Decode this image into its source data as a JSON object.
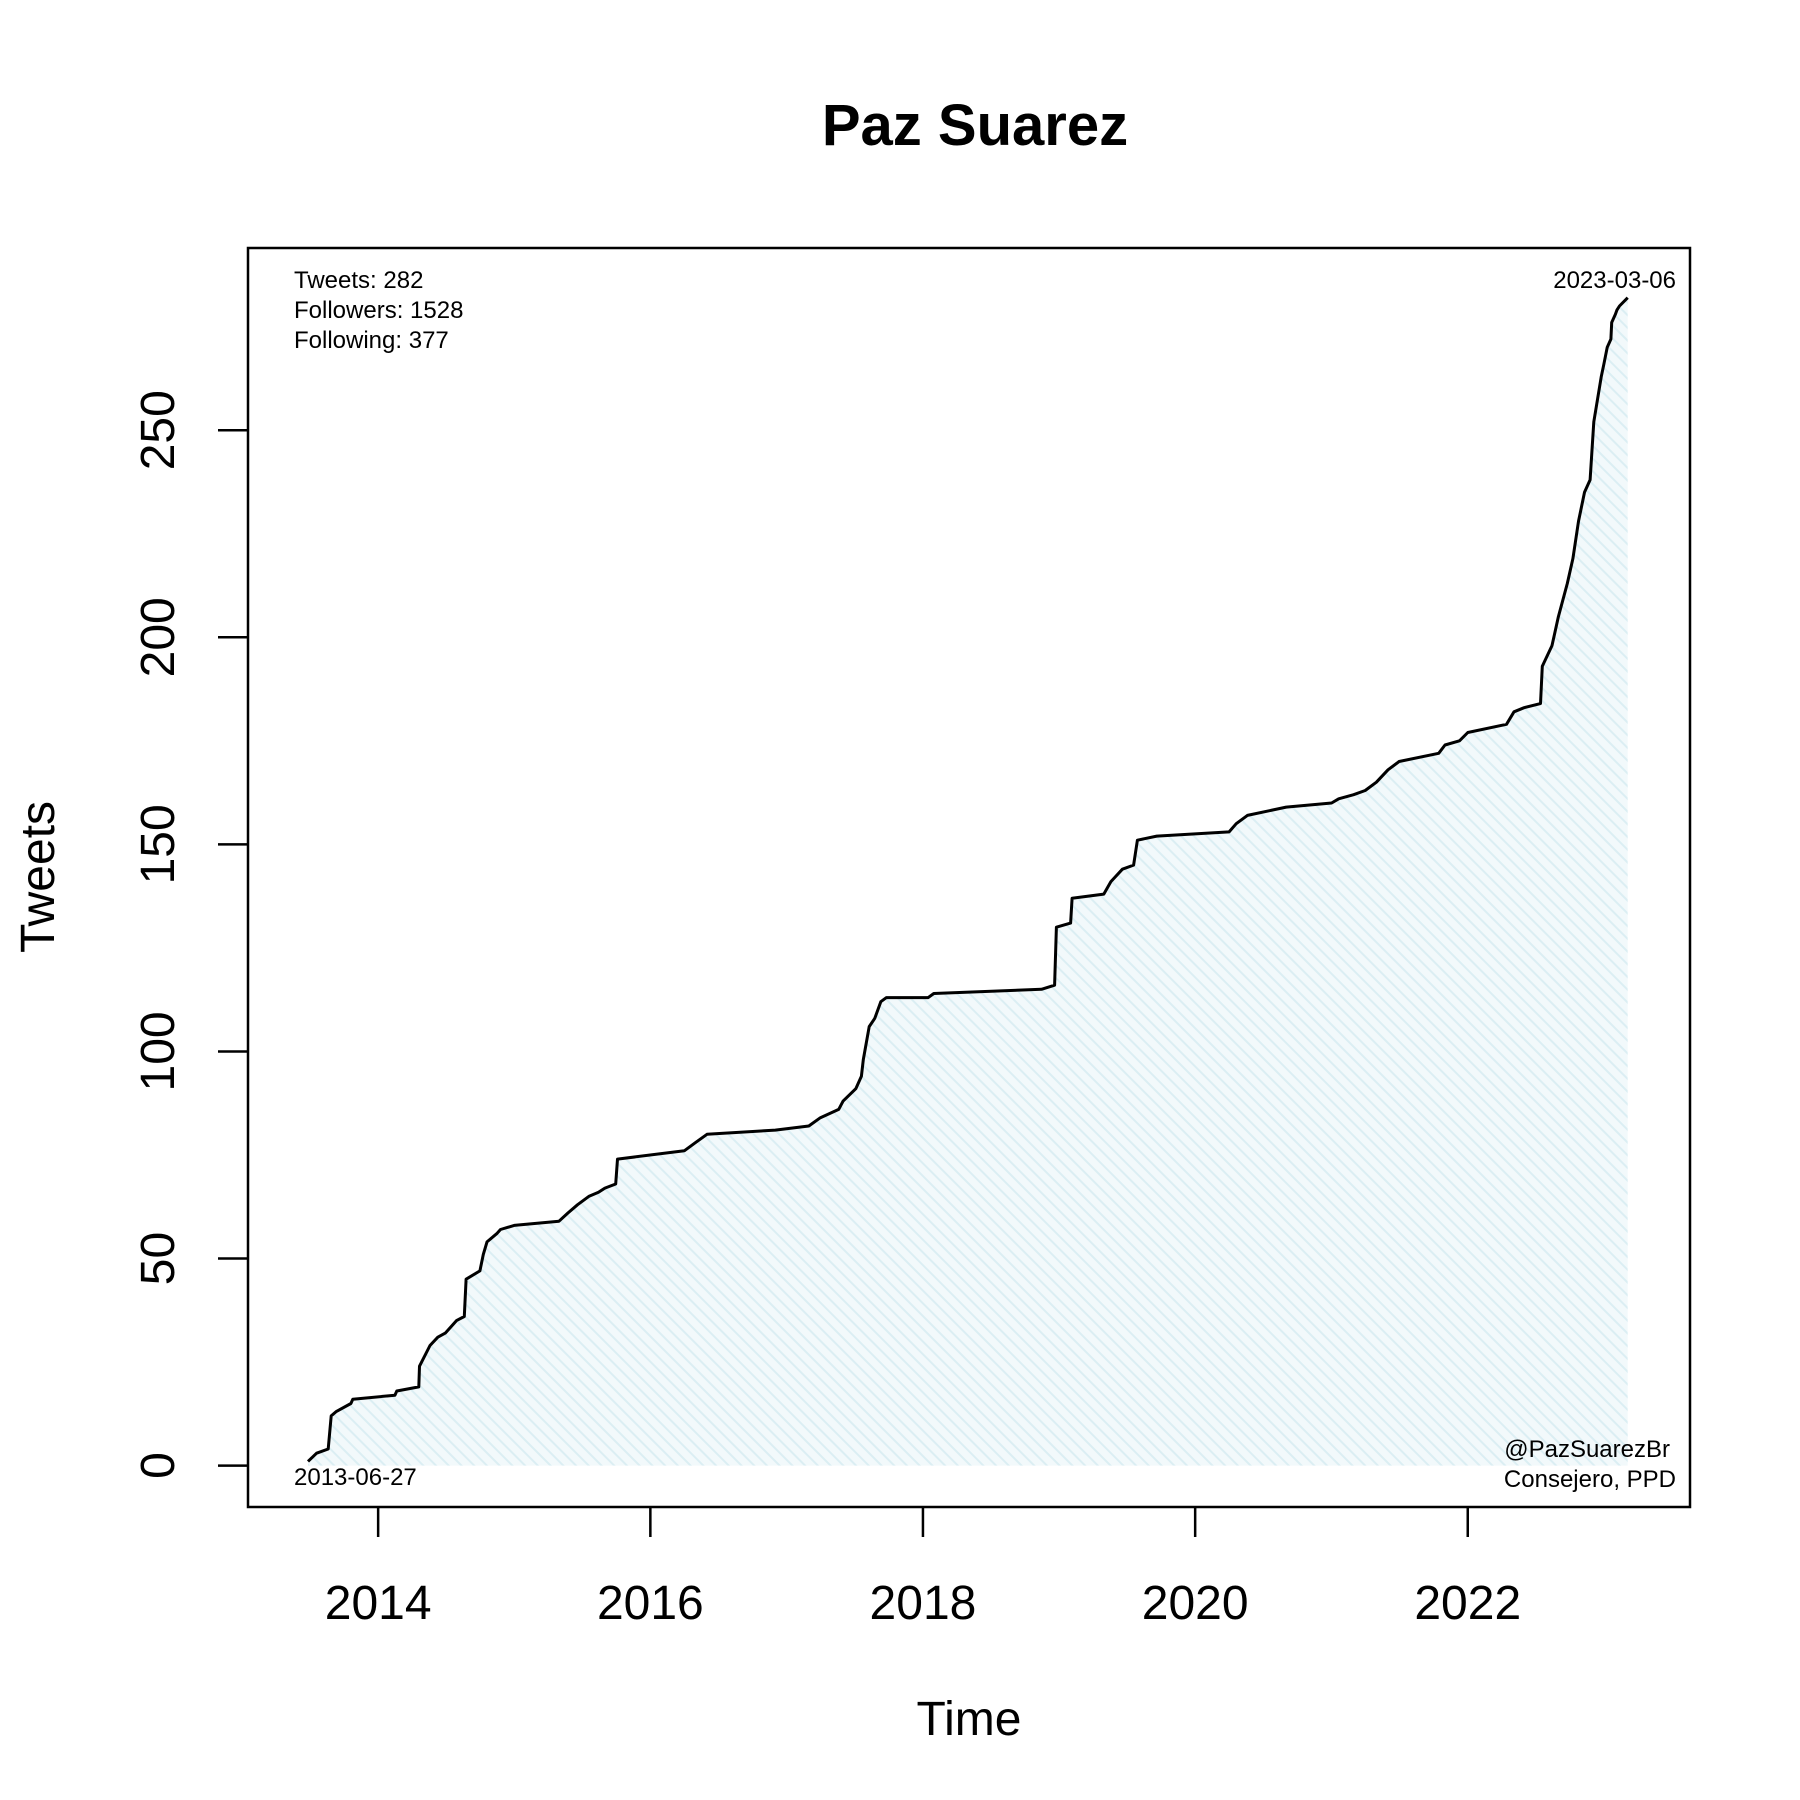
{
  "chart_data": {
    "type": "line",
    "title": "Paz Suarez",
    "xlabel": "Time",
    "ylabel": "Tweets",
    "xlim": [
      "2013-01-17",
      "2023-08-20"
    ],
    "ylim": [
      -10,
      294
    ],
    "x_ticks": [
      "2014",
      "2016",
      "2018",
      "2020",
      "2022"
    ],
    "y_ticks": [
      "0",
      "50",
      "100",
      "150",
      "200",
      "250"
    ],
    "grid": false,
    "fill": "hatched light blue under the line",
    "colors": {
      "line": "#000000",
      "fill": "#dbeef3"
    },
    "stats": {
      "tweets": "Tweets: 282",
      "followers": "Followers: 1528",
      "following": "Following: 377"
    },
    "start_label": "2013-06-27",
    "end_label": "2023-03-06",
    "handle": "@PazSuarezBr",
    "role": "Consejero, PPD",
    "series": [
      {
        "x": [
          "2013-06-27",
          "2013-07-20",
          "2013-08-20",
          "2013-08-28",
          "2013-09-10",
          "2013-10-20",
          "2013-10-25",
          "2014-02-15",
          "2014-02-20",
          "2014-04-20",
          "2014-04-22",
          "2014-05-20",
          "2014-06-10",
          "2014-06-30",
          "2014-07-30",
          "2014-08-20",
          "2014-08-25",
          "2014-10-01",
          "2014-10-10",
          "2014-10-20",
          "2014-11-15",
          "2014-11-25",
          "2015-01-01",
          "2015-05-01",
          "2015-05-25",
          "2015-06-20",
          "2015-07-20",
          "2015-08-15",
          "2015-09-01",
          "2015-09-30",
          "2015-10-05",
          "2016-04-01",
          "2016-05-01",
          "2016-06-01",
          "2016-12-01",
          "2017-03-01",
          "2017-04-01",
          "2017-05-20",
          "2017-06-01",
          "2017-07-05",
          "2017-07-20",
          "2017-07-25",
          "2017-08-10",
          "2017-08-25",
          "2017-09-10",
          "2017-09-25",
          "2018-01-15",
          "2018-01-30",
          "2018-11-15",
          "2018-12-20",
          "2018-12-25",
          "2019-02-01",
          "2019-02-05",
          "2019-05-01",
          "2019-05-20",
          "2019-06-20",
          "2019-07-20",
          "2019-07-30",
          "2019-09-20",
          "2020-04-01",
          "2020-04-20",
          "2020-05-20",
          "2020-09-01",
          "2021-01-01",
          "2021-01-20",
          "2021-03-01",
          "2021-04-01",
          "2021-05-01",
          "2021-06-01",
          "2021-07-01",
          "2021-10-15",
          "2021-11-01",
          "2021-12-10",
          "2022-01-01",
          "2022-04-15",
          "2022-05-05",
          "2022-06-01",
          "2022-07-15",
          "2022-07-20",
          "2022-08-15",
          "2022-09-01",
          "2022-09-25",
          "2022-10-10",
          "2022-10-25",
          "2022-11-10",
          "2022-11-25",
          "2022-12-05",
          "2022-12-25",
          "2023-01-01",
          "2023-01-10",
          "2023-01-20",
          "2023-01-22",
          "2023-02-01",
          "2023-02-05",
          "2023-02-12",
          "2023-03-06"
        ],
        "y": [
          1,
          3,
          4,
          12,
          13,
          15,
          16,
          17,
          18,
          19,
          24,
          29,
          31,
          32,
          35,
          36,
          45,
          47,
          51,
          54,
          56,
          57,
          58,
          59,
          61,
          63,
          65,
          66,
          67,
          68,
          74,
          76,
          78,
          80,
          81,
          82,
          84,
          86,
          88,
          91,
          94,
          98,
          106,
          108,
          112,
          113,
          113,
          114,
          115,
          116,
          130,
          131,
          137,
          138,
          141,
          144,
          145,
          151,
          152,
          153,
          155,
          157,
          159,
          160,
          161,
          162,
          163,
          165,
          168,
          170,
          172,
          174,
          175,
          177,
          179,
          182,
          183,
          184,
          193,
          198,
          205,
          213,
          219,
          228,
          235,
          238,
          252,
          263,
          266,
          270,
          272,
          276,
          278,
          279,
          280,
          282
        ]
      }
    ]
  }
}
